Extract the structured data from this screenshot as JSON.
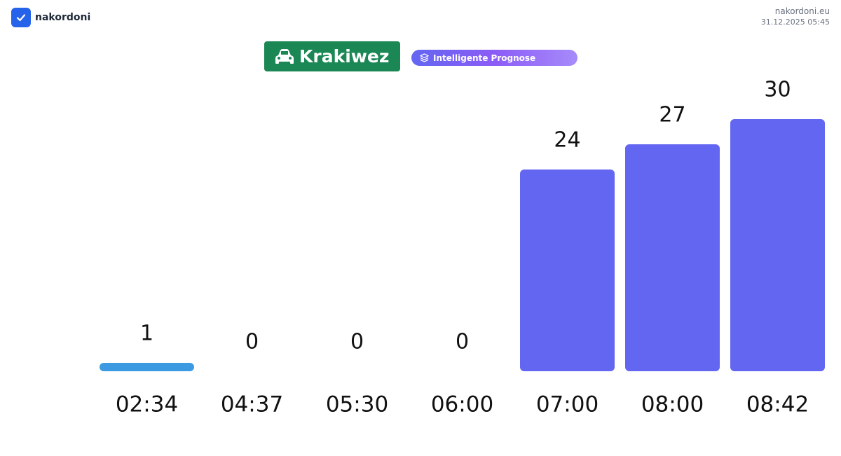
{
  "header": {
    "brand": "nakordoni",
    "site": "nakordoni.eu",
    "timestamp": "31.12.2025 05:45",
    "crossing": "Krakiwez",
    "forecast": "Intelligente Prognose"
  },
  "chart_data": {
    "type": "bar",
    "categories": [
      "02:34",
      "04:37",
      "05:30",
      "06:00",
      "07:00",
      "08:00",
      "08:42"
    ],
    "values": [
      1,
      0,
      0,
      0,
      24,
      27,
      30
    ],
    "colors": [
      "#3b9ae1",
      "#6366f1",
      "#6366f1",
      "#6366f1",
      "#6366f1",
      "#6366f1",
      "#6366f1"
    ]
  }
}
